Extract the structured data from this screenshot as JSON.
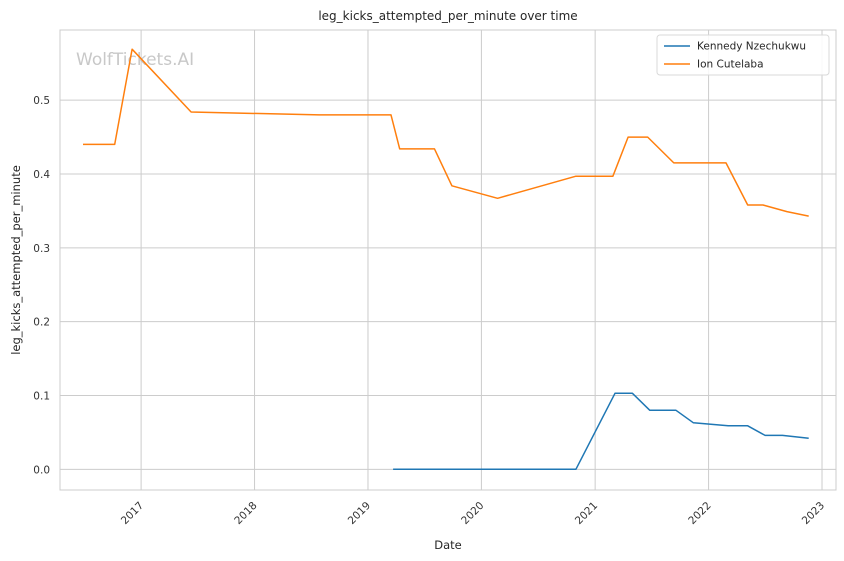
{
  "chart_data": {
    "type": "line",
    "title": "leg_kicks_attempted_per_minute over time",
    "xlabel": "Date",
    "ylabel": "leg_kicks_attempted_per_minute",
    "watermark": "WolfTickets.AI",
    "x_ticks": [
      "2017",
      "2018",
      "2019",
      "2020",
      "2021",
      "2022",
      "2023"
    ],
    "y_ticks": [
      "0.0",
      "0.1",
      "0.2",
      "0.3",
      "0.4",
      "0.5"
    ],
    "xlim": [
      "2016-04-15",
      "2023-02-15"
    ],
    "ylim": [
      -0.028,
      0.595
    ],
    "grid": true,
    "legend_position": "top-right",
    "series": [
      {
        "name": "Kennedy Nzechukwu",
        "color": "#1f77b4",
        "points": [
          [
            "2019-03-23",
            0.0
          ],
          [
            "2020-10-31",
            0.0
          ],
          [
            "2021-03-06",
            0.103
          ],
          [
            "2021-05-01",
            0.103
          ],
          [
            "2021-06-26",
            0.08
          ],
          [
            "2021-09-18",
            0.08
          ],
          [
            "2021-11-13",
            0.063
          ],
          [
            "2022-03-05",
            0.059
          ],
          [
            "2022-05-07",
            0.059
          ],
          [
            "2022-07-02",
            0.046
          ],
          [
            "2022-08-27",
            0.046
          ],
          [
            "2022-11-19",
            0.042
          ]
        ]
      },
      {
        "name": "Ion Cutelaba",
        "color": "#ff7f0e",
        "points": [
          [
            "2016-06-28",
            0.44
          ],
          [
            "2016-10-08",
            0.44
          ],
          [
            "2016-12-03",
            0.569
          ],
          [
            "2017-06-11",
            0.484
          ],
          [
            "2018-07-28",
            0.48
          ],
          [
            "2019-03-16",
            0.48
          ],
          [
            "2019-04-13",
            0.434
          ],
          [
            "2019-08-03",
            0.434
          ],
          [
            "2019-09-28",
            0.384
          ],
          [
            "2020-02-22",
            0.367
          ],
          [
            "2020-10-31",
            0.397
          ],
          [
            "2021-02-27",
            0.397
          ],
          [
            "2021-04-17",
            0.45
          ],
          [
            "2021-06-19",
            0.45
          ],
          [
            "2021-09-11",
            0.415
          ],
          [
            "2022-02-26",
            0.415
          ],
          [
            "2022-05-07",
            0.358
          ],
          [
            "2022-06-25",
            0.358
          ],
          [
            "2022-09-10",
            0.349
          ],
          [
            "2022-11-19",
            0.343
          ]
        ]
      }
    ]
  }
}
